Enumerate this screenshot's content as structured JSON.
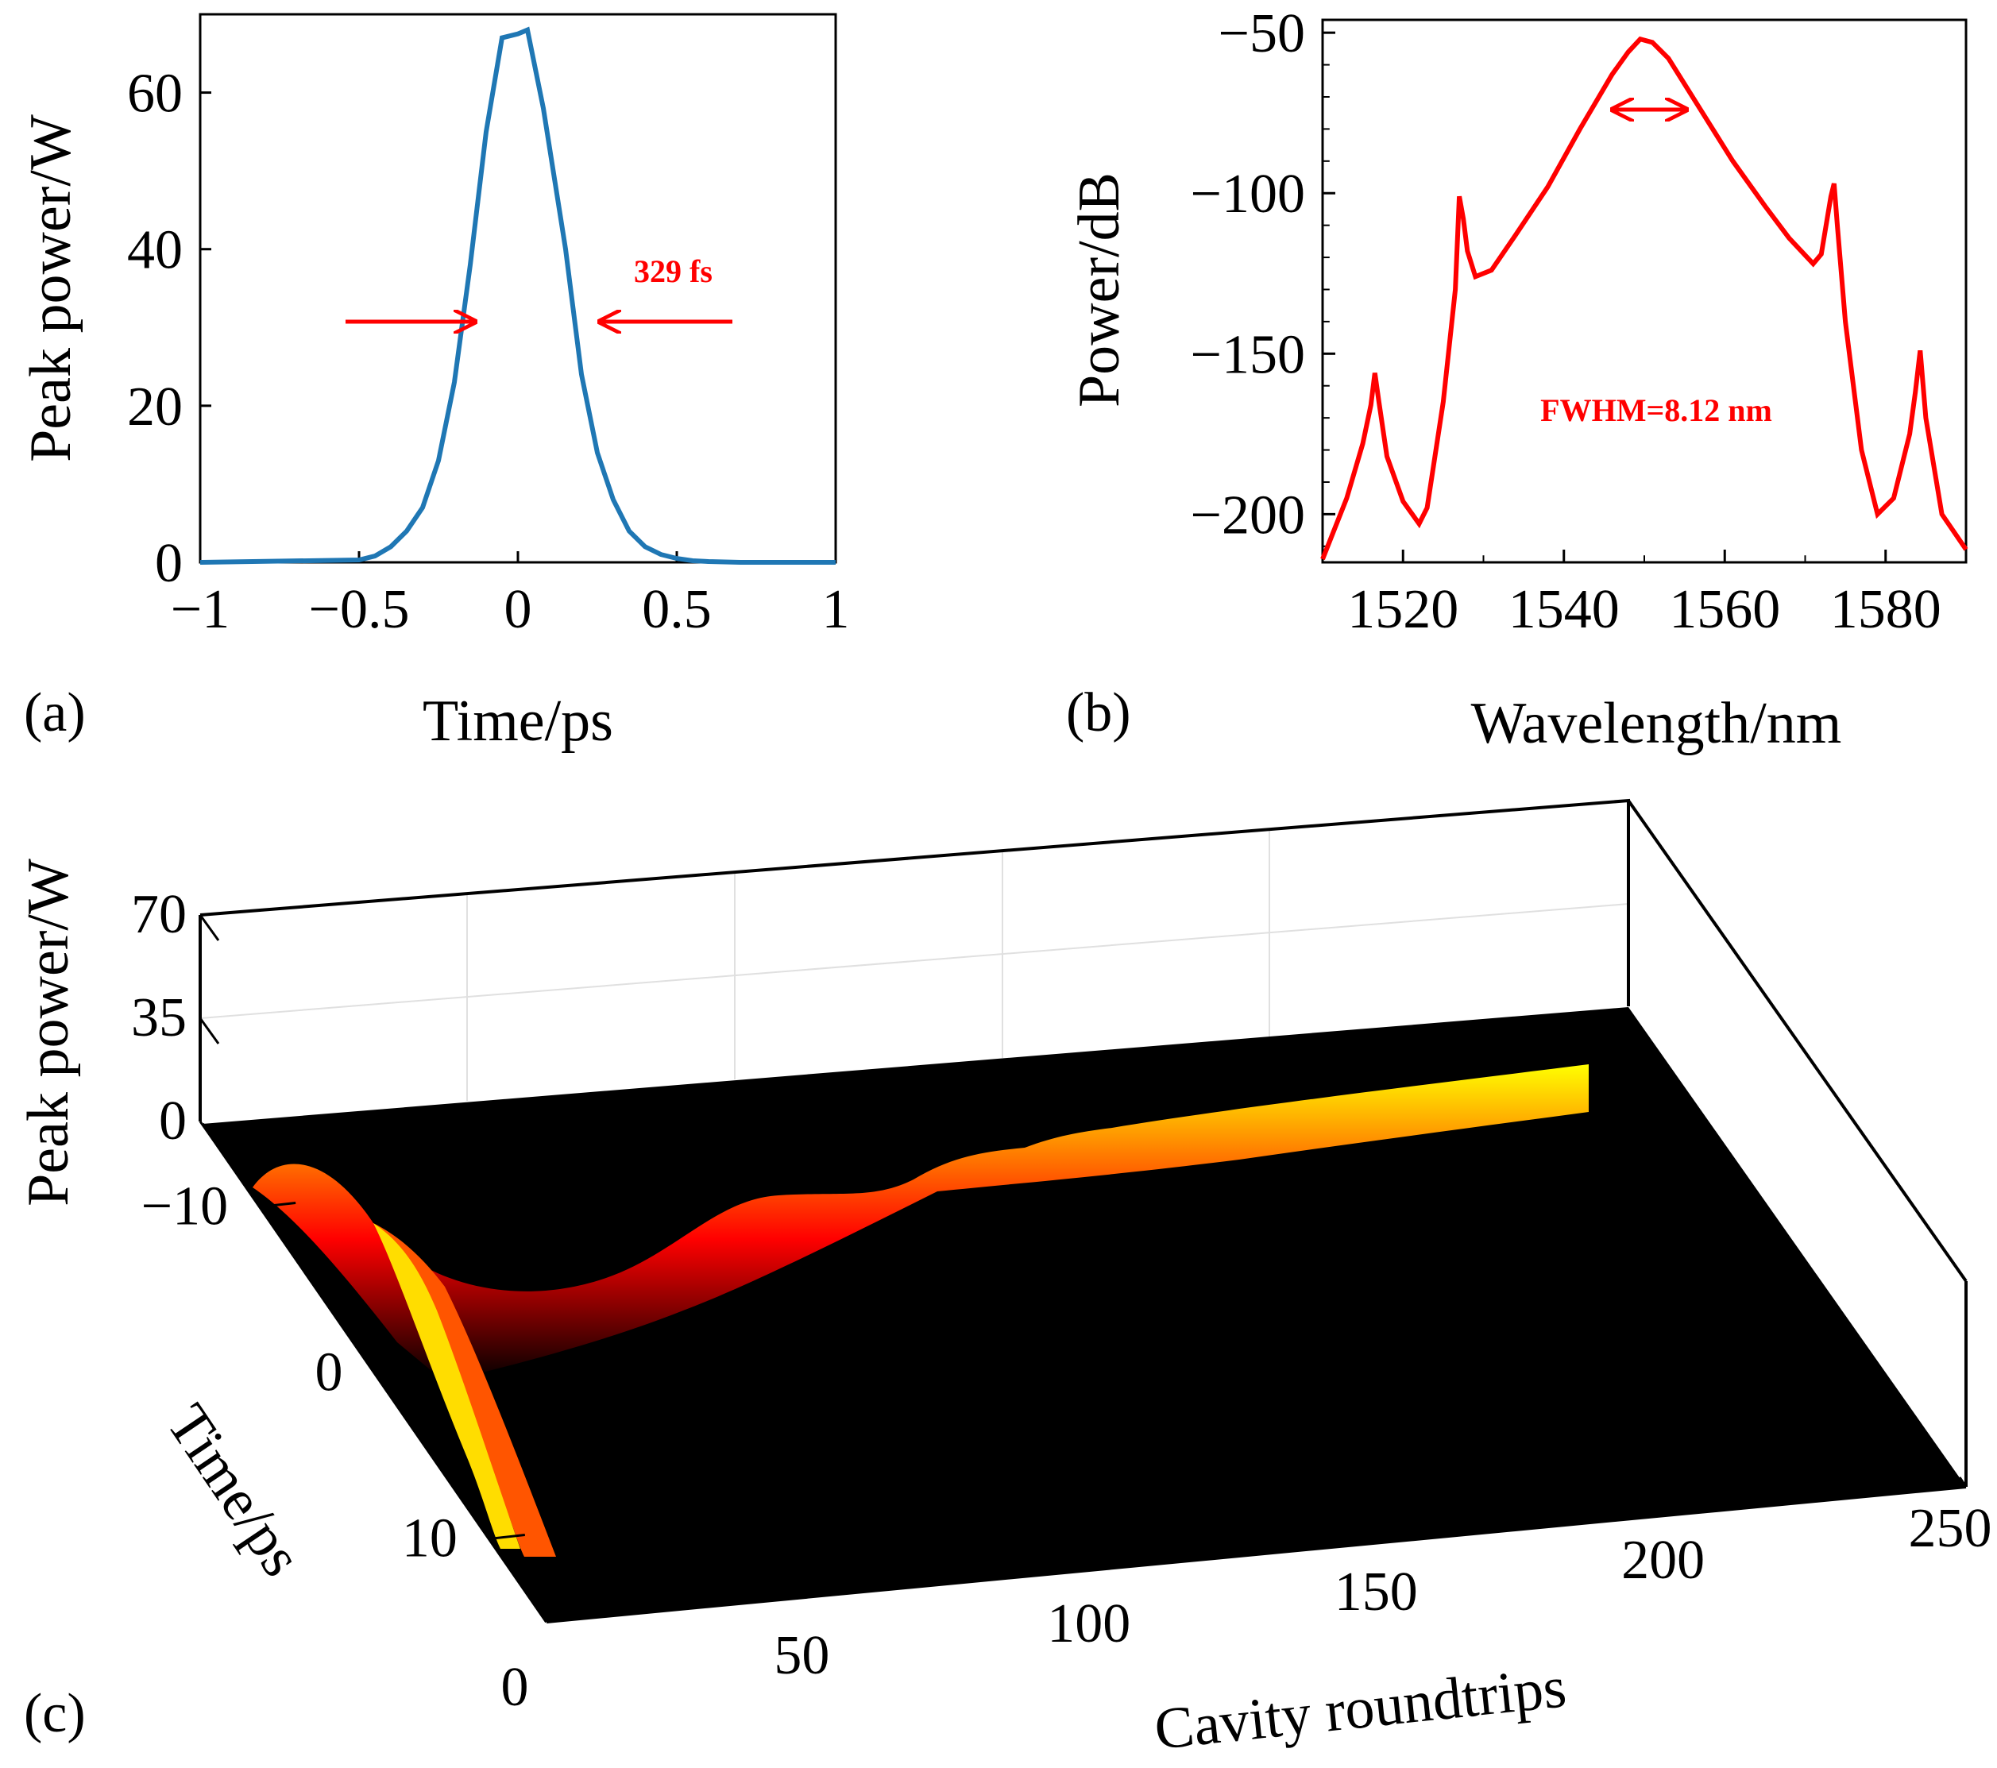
{
  "colors": {
    "panel_a_line": "#1f77b4",
    "panel_b_line": "#ff0000",
    "annotation": "#ff0000",
    "surface_low": "#000000",
    "surface_mid": "#ff0000",
    "surface_high": "#ffff00"
  },
  "chart_data": [
    {
      "type": "line",
      "panel": "(a)",
      "xlabel": "Time/ps",
      "ylabel": "Peak power/W",
      "xlim": [
        -1,
        1
      ],
      "ylim": [
        0,
        70
      ],
      "x_ticks": [
        -1,
        -0.5,
        0,
        0.5,
        1
      ],
      "x_tick_labels": [
        "−1",
        "−0.5",
        "0",
        "0.5",
        "1"
      ],
      "y_ticks": [
        0,
        20,
        40,
        60
      ],
      "y_tick_labels": [
        "0",
        "20",
        "40",
        "60"
      ],
      "series": [
        {
          "name": "pulse",
          "x": [
            -1.0,
            -0.5,
            -0.45,
            -0.4,
            -0.35,
            -0.3,
            -0.25,
            -0.2,
            -0.15,
            -0.1,
            -0.05,
            0.0,
            0.03,
            0.08,
            0.15,
            0.2,
            0.25,
            0.3,
            0.35,
            0.4,
            0.45,
            0.5,
            0.55,
            0.6,
            0.65,
            0.7,
            1.0
          ],
          "y": [
            0,
            0.3,
            0.8,
            2,
            4,
            7,
            13,
            23,
            38,
            55,
            67,
            67.5,
            68,
            58,
            40,
            24,
            14,
            8,
            4,
            2,
            1,
            0.5,
            0.2,
            0.1,
            0.05,
            0,
            0
          ]
        }
      ],
      "annotation": "329 fs"
    },
    {
      "type": "line",
      "panel": "(b)",
      "xlabel": "Wavelength/nm",
      "ylabel": "Power/dB",
      "xlim": [
        1510,
        1590
      ],
      "ylim": [
        -215,
        -46
      ],
      "x_ticks": [
        1520,
        1540,
        1560,
        1580
      ],
      "x_tick_labels": [
        "1520",
        "1540",
        "1560",
        "1580"
      ],
      "y_ticks": [
        -50,
        -100,
        -150,
        -200
      ],
      "y_tick_labels": [
        "−50",
        "−100",
        "−150",
        "−200"
      ],
      "series": [
        {
          "name": "spectrum",
          "x": [
            1510,
            1513,
            1515,
            1516,
            1516.5,
            1517,
            1518,
            1520,
            1522,
            1523,
            1525,
            1526.5,
            1527,
            1527.5,
            1528,
            1529,
            1531,
            1534,
            1538,
            1542,
            1546,
            1548,
            1549.5,
            1551,
            1553,
            1557,
            1561,
            1565,
            1568,
            1571,
            1572,
            1573.2,
            1573.6,
            1574,
            1575,
            1577,
            1579,
            1581,
            1583,
            1583.7,
            1584.3,
            1585,
            1587,
            1590
          ],
          "y": [
            -214,
            -195,
            -178,
            -166,
            -156,
            -165,
            -182,
            -196,
            -203,
            -198,
            -165,
            -130,
            -101,
            -108,
            -118,
            -126,
            -124,
            -113,
            -98,
            -80,
            -63,
            -56,
            -52,
            -53,
            -58,
            -74,
            -90,
            -104,
            -114,
            -122,
            -119,
            -101,
            -97,
            -110,
            -140,
            -180,
            -200,
            -195,
            -175,
            -162,
            -149,
            -170,
            -200,
            -211
          ]
        }
      ],
      "annotation": "FWHM=8.12 nm"
    },
    {
      "type": "surface",
      "panel": "(c)",
      "xlabel": "Cavity roundtrips",
      "ylabel": "Time/ps",
      "zlabel": "Peak power/W",
      "xlim": [
        0,
        250
      ],
      "ylim": [
        -15,
        15
      ],
      "zlim": [
        0,
        70
      ],
      "x_ticks": [
        0,
        50,
        100,
        150,
        200,
        250
      ],
      "x_tick_labels": [
        "0",
        "50",
        "100",
        "150",
        "200",
        "250"
      ],
      "y_ticks": [
        -10,
        0,
        10
      ],
      "y_tick_labels": [
        "−10",
        "0",
        "10"
      ],
      "z_ticks": [
        0,
        35,
        70
      ],
      "z_tick_labels": [
        "0",
        "35",
        "70"
      ],
      "peak_roundtrips": [
        0,
        10,
        20,
        30,
        40,
        50,
        60,
        70,
        80,
        90,
        100,
        110,
        120,
        130,
        140,
        150,
        160,
        170,
        180,
        190,
        200,
        210,
        220,
        230,
        240,
        250
      ],
      "peak_power": [
        8,
        14,
        9,
        3,
        5,
        16,
        26,
        26,
        30,
        40,
        42,
        44,
        45,
        46,
        48,
        50,
        52,
        54,
        56,
        58,
        60,
        62,
        64,
        66,
        67,
        68
      ]
    }
  ]
}
